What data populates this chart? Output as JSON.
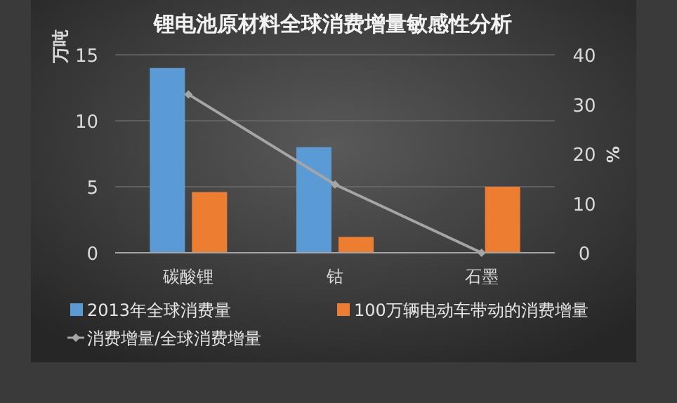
{
  "chart_data": {
    "type": "bar",
    "title": "锂电池原材料全球消费增量敏感性分析",
    "ylabel": "万吨",
    "y2label": "%",
    "categories": [
      "碳酸锂",
      "钴",
      "石墨"
    ],
    "series": [
      {
        "name": "2013年全球消费量",
        "color": "#5b9bd5",
        "values": [
          14,
          8,
          0
        ]
      },
      {
        "name": "100万辆电动车带动的消费增量",
        "color": "#ed7d31",
        "values": [
          4.6,
          1.2,
          5
        ]
      },
      {
        "name": "消费增量/全球消费增量",
        "type": "line",
        "axis": "y2",
        "color": "#a5a5a5",
        "values": [
          32,
          13.8,
          0
        ]
      }
    ],
    "ylim": [
      0,
      15
    ],
    "yticks": [
      0,
      5,
      10,
      15
    ],
    "y2lim": [
      0,
      40
    ],
    "y2ticks": [
      0,
      10,
      20,
      30,
      40
    ],
    "grid": "y",
    "legend": "bottom",
    "marker": "diamond",
    "line_style": "solid"
  }
}
